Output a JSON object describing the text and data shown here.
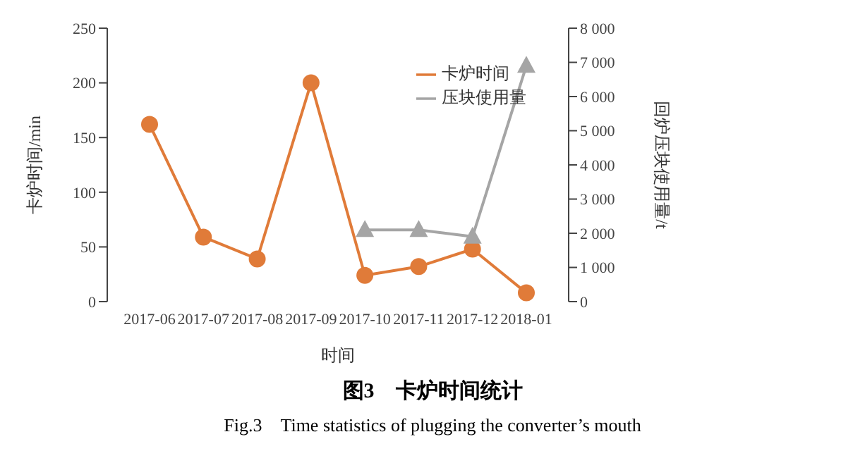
{
  "chart_data": {
    "type": "line",
    "title": "图3　卡炉时间统计",
    "subtitle": "Fig.3　Time statistics of plugging the converter’s mouth",
    "xlabel": "时间",
    "ylabel": "卡炉时间/min",
    "y2label": "回炉压块使用量/t",
    "categories": [
      "2017-06",
      "2017-07",
      "2017-08",
      "2017-09",
      "2017-10",
      "2017-11",
      "2017-12",
      "2018-01"
    ],
    "series": [
      {
        "name": "卡炉时间",
        "color": "#e07b39",
        "marker": "circle",
        "values": [
          162,
          59,
          39,
          200,
          24,
          32,
          48,
          8
        ]
      },
      {
        "name": "压块使用量",
        "color": "#a5a5a5",
        "marker": "triangle",
        "axis": "y2",
        "values": [
          null,
          null,
          null,
          null,
          2100,
          2100,
          1900,
          6900
        ]
      }
    ],
    "ylim": [
      0,
      250
    ],
    "yticks": [
      0,
      50,
      100,
      150,
      200,
      250
    ],
    "y2lim": [
      0,
      8000
    ],
    "y2ticks": [
      0,
      {
        "value": 1000,
        "label": "1 000"
      },
      {
        "value": 2000,
        "label": "2 000"
      },
      {
        "value": 3000,
        "label": "3 000"
      },
      {
        "value": 4000,
        "label": "4 000"
      },
      {
        "value": 5000,
        "label": "5 000"
      },
      {
        "value": 6000,
        "label": "6 000"
      },
      {
        "value": 7000,
        "label": "7 000"
      },
      {
        "value": 8000,
        "label": "8 000"
      }
    ],
    "grid": false,
    "legend": "top right"
  }
}
